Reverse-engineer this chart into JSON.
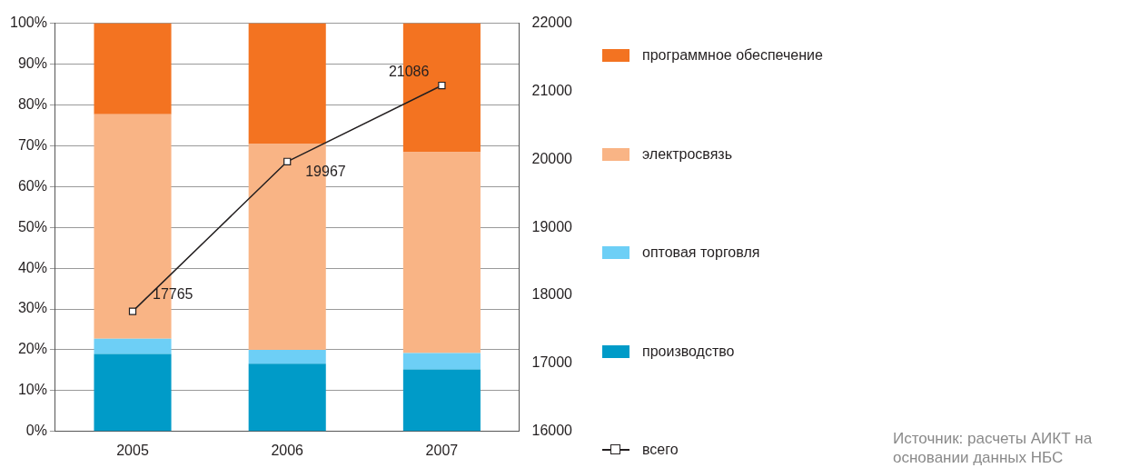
{
  "chart_data": {
    "type": "bar",
    "stacked": true,
    "categories": [
      "2005",
      "2006",
      "2007"
    ],
    "series": [
      {
        "name": "производство",
        "color": "#009bc8",
        "values": [
          19.0,
          16.6,
          15.2
        ]
      },
      {
        "name": "оптовая торговля",
        "color": "#6dcff6",
        "values": [
          3.7,
          3.4,
          4.0
        ]
      },
      {
        "name": "электросвязь",
        "color": "#f9b485",
        "values": [
          55.0,
          50.4,
          49.2
        ]
      },
      {
        "name": "программное обеспечение",
        "color": "#f37321",
        "values": [
          22.3,
          29.6,
          31.6
        ]
      },
      {
        "name": "всего",
        "type": "line",
        "axis": "y2",
        "color": "#231f20",
        "marker": "square",
        "values": [
          17765,
          19967,
          21086
        ],
        "value_labels": [
          "17765",
          "19967",
          "21086"
        ]
      }
    ],
    "ylim": [
      0,
      100
    ],
    "yticks": [
      {
        "value": 0,
        "label": "0%"
      },
      {
        "value": 10,
        "label": "10%"
      },
      {
        "value": 20,
        "label": "20%"
      },
      {
        "value": 30,
        "label": "30%"
      },
      {
        "value": 40,
        "label": "40%"
      },
      {
        "value": 50,
        "label": "50%"
      },
      {
        "value": 60,
        "label": "60%"
      },
      {
        "value": 70,
        "label": "70%"
      },
      {
        "value": 80,
        "label": "80%"
      },
      {
        "value": 90,
        "label": "90%"
      },
      {
        "value": 100,
        "label": "100%"
      }
    ],
    "y2lim": [
      16000,
      22000
    ],
    "y2ticks": [
      16000,
      17000,
      18000,
      19000,
      20000,
      21000,
      22000
    ],
    "grid": "y",
    "legend": "right",
    "annotations": [
      "Источник: расчеты АИКТ на основании данных НБС"
    ]
  }
}
